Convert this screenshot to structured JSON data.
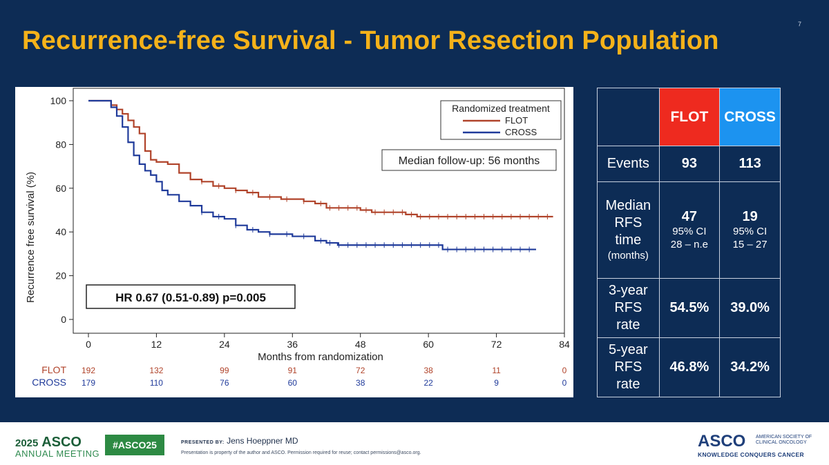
{
  "slide": {
    "title": "Recurrence-free Survival - Tumor Resection Population",
    "number": "7"
  },
  "chart_data": {
    "type": "line",
    "step": true,
    "ylabel": "Recurrence free survival (%)",
    "xlabel": "Months from randomization",
    "xlim": [
      0,
      84
    ],
    "ylim": [
      0,
      100
    ],
    "xticks": [
      0,
      12,
      24,
      36,
      48,
      60,
      72,
      84
    ],
    "yticks": [
      0,
      20,
      40,
      60,
      80,
      100
    ],
    "legend": {
      "title": "Randomized treatment",
      "placement": "top-right"
    },
    "annotations": {
      "median_followup": "Median follow-up: 56 months",
      "hazard_ratio": "HR 0.67 (0.51-0.89) p=0.005"
    },
    "series": [
      {
        "name": "FLOT",
        "color": "#b0432a",
        "points": [
          [
            0,
            100
          ],
          [
            3,
            100
          ],
          [
            4,
            98
          ],
          [
            5,
            96
          ],
          [
            6,
            94
          ],
          [
            7,
            91
          ],
          [
            8,
            88
          ],
          [
            9,
            85
          ],
          [
            10,
            77
          ],
          [
            11,
            73
          ],
          [
            12,
            72
          ],
          [
            14,
            71
          ],
          [
            16,
            67
          ],
          [
            18,
            64
          ],
          [
            20,
            63
          ],
          [
            22,
            61
          ],
          [
            24,
            60
          ],
          [
            26,
            59
          ],
          [
            28,
            58
          ],
          [
            30,
            56
          ],
          [
            32,
            56
          ],
          [
            34,
            55
          ],
          [
            36,
            55
          ],
          [
            38,
            54
          ],
          [
            40,
            53
          ],
          [
            42,
            51
          ],
          [
            44,
            51
          ],
          [
            46,
            51
          ],
          [
            48,
            50
          ],
          [
            50,
            49
          ],
          [
            52,
            49
          ],
          [
            54,
            49
          ],
          [
            56,
            48
          ],
          [
            58,
            47
          ],
          [
            60,
            47
          ],
          [
            66,
            47
          ],
          [
            72,
            47
          ],
          [
            82,
            47
          ]
        ],
        "at_risk": [
          192,
          132,
          99,
          91,
          72,
          38,
          11,
          0
        ]
      },
      {
        "name": "CROSS",
        "color": "#1f3a9a",
        "points": [
          [
            0,
            100
          ],
          [
            3,
            100
          ],
          [
            4,
            97
          ],
          [
            5,
            93
          ],
          [
            6,
            88
          ],
          [
            7,
            81
          ],
          [
            8,
            75
          ],
          [
            9,
            71
          ],
          [
            10,
            68
          ],
          [
            11,
            66
          ],
          [
            12,
            63
          ],
          [
            13,
            59
          ],
          [
            14,
            57
          ],
          [
            16,
            54
          ],
          [
            18,
            52
          ],
          [
            20,
            49
          ],
          [
            22,
            47
          ],
          [
            24,
            46
          ],
          [
            26,
            43
          ],
          [
            28,
            41
          ],
          [
            30,
            40
          ],
          [
            32,
            39
          ],
          [
            34,
            39
          ],
          [
            36,
            38
          ],
          [
            38,
            38
          ],
          [
            40,
            36
          ],
          [
            42,
            35
          ],
          [
            44,
            34
          ],
          [
            46,
            34
          ],
          [
            48,
            34
          ],
          [
            52,
            34
          ],
          [
            56,
            34
          ],
          [
            60,
            34
          ],
          [
            62,
            34
          ],
          [
            62.5,
            32
          ],
          [
            66,
            32
          ],
          [
            72,
            32
          ],
          [
            79,
            32
          ]
        ],
        "at_risk": [
          179,
          110,
          76,
          60,
          38,
          22,
          9,
          0
        ]
      }
    ],
    "at_risk_times": [
      0,
      12,
      24,
      36,
      48,
      60,
      72,
      84
    ]
  },
  "table": {
    "headers": [
      "",
      "FLOT",
      "CROSS"
    ],
    "header_colors": {
      "flot": "#ee2a1f",
      "cross": "#1c93f0"
    },
    "events": {
      "label": "Events",
      "flot": "93",
      "cross": "113"
    },
    "median": {
      "label_lines": [
        "Median",
        "RFS",
        "time"
      ],
      "label_unit": "(months)",
      "flot": "47",
      "flot_ci_label": "95% CI",
      "flot_ci": "28 – n.e",
      "cross": "19",
      "cross_ci_label": "95% CI",
      "cross_ci": "15 – 27"
    },
    "three_year": {
      "label_lines": [
        "3-year",
        "RFS",
        "rate"
      ],
      "flot": "54.5%",
      "cross": "39.0%"
    },
    "five_year": {
      "label_lines": [
        "5-year",
        "RFS",
        "rate"
      ],
      "flot": "46.8%",
      "cross": "34.2%"
    }
  },
  "footer": {
    "year": "2025",
    "asco": "ASCO",
    "meeting": "ANNUAL MEETING",
    "hashtag": "#ASCO25",
    "presented_by_label": "PRESENTED BY:",
    "presenter": "Jens Hoeppner MD",
    "disclaimer": "Presentation is property of the author and ASCO. Permission required for reuse; contact permissions@asco.org.",
    "logo": "ASCO",
    "society_line1": "AMERICAN SOCIETY OF",
    "society_line2": "CLINICAL ONCOLOGY",
    "tagline": "KNOWLEDGE CONQUERS CANCER"
  }
}
